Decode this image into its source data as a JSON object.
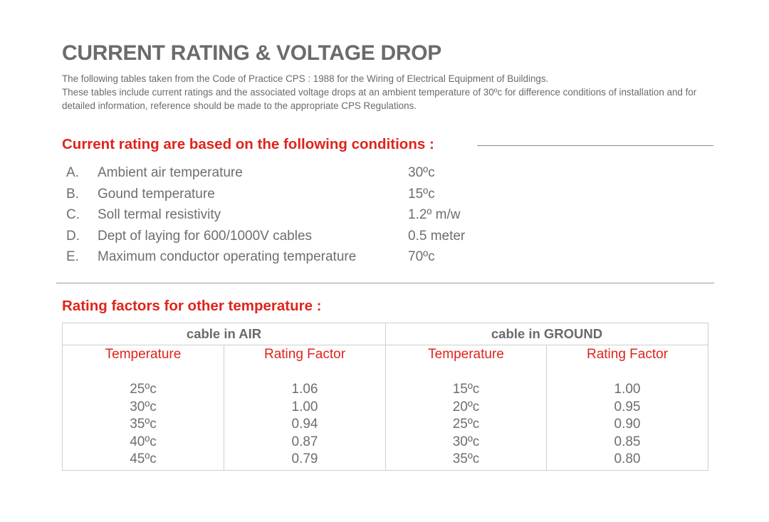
{
  "title": "CURRENT RATING & VOLTAGE DROP",
  "intro": {
    "line1": "The following tables taken from the Code of Practice CPS : 1988 for the Wiring of Electrical Equipment of Buildings.",
    "line2": "These tables include current ratings and the associated voltage drops at an ambient temperature of 30ºc for difference conditions of installation and for detailed information, reference should be made to the appropriate CPS Regulations."
  },
  "conditions": {
    "heading": "Current rating are based on the following conditions :",
    "items": [
      {
        "letter": "A.",
        "label": "Ambient air temperature",
        "value": "30ºc"
      },
      {
        "letter": "B.",
        "label": "Gound temperature",
        "value": "15ºc"
      },
      {
        "letter": "C.",
        "label": "Soll termal resistivity",
        "value": "1.2º m/w"
      },
      {
        "letter": "D.",
        "label": "Dept of laying for 600/1000V cables",
        "value": "0.5 meter"
      },
      {
        "letter": "E.",
        "label": "Maximum conductor operating temperature",
        "value": "70ºc"
      }
    ]
  },
  "rating_factors": {
    "heading": "Rating factors for other temperature :",
    "air": {
      "group_label": "cable in AIR",
      "temperature_header": "Temperature",
      "factor_header": "Rating Factor",
      "temperatures": [
        "25ºc",
        "30ºc",
        "35ºc",
        "40ºc",
        "45ºc"
      ],
      "factors": [
        "1.06",
        "1.00",
        "0.94",
        "0.87",
        "0.79"
      ]
    },
    "ground": {
      "group_label": "cable in GROUND",
      "temperature_header": "Temperature",
      "factor_header": "Rating Factor",
      "temperatures": [
        "15ºc",
        "20ºc",
        "25ºc",
        "30ºc",
        "35ºc"
      ],
      "factors": [
        "1.00",
        "0.95",
        "0.90",
        "0.85",
        "0.80"
      ]
    }
  },
  "colors": {
    "accent_red": "#e0231b",
    "text_gray": "#6e6e6e",
    "border_gray": "#cfcfcf"
  }
}
